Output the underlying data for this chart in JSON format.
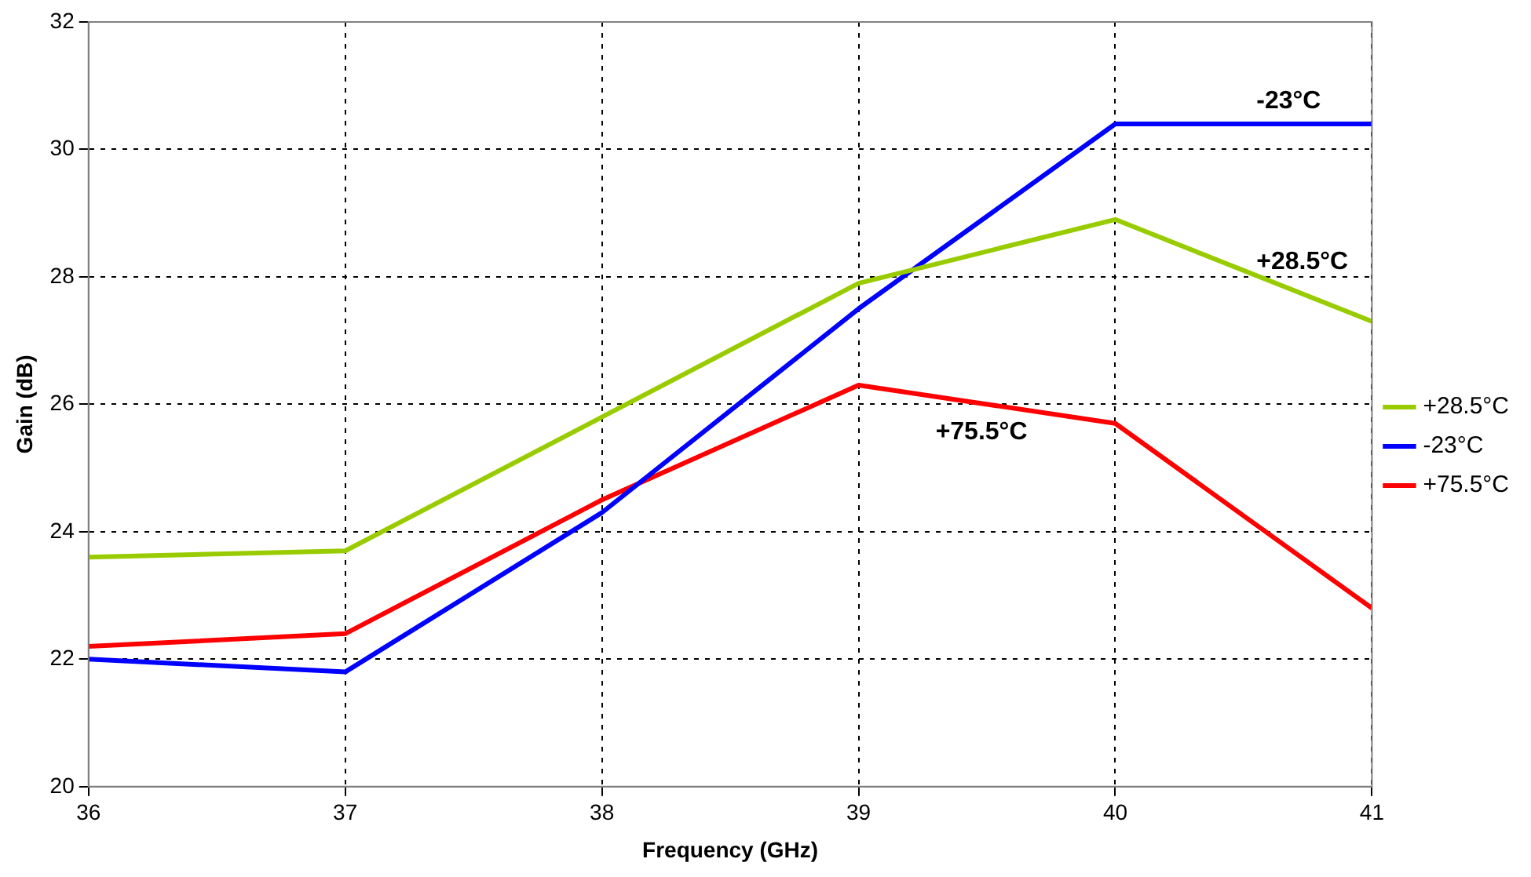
{
  "chart_data": {
    "type": "line",
    "xlabel": "Frequency (GHz)",
    "ylabel": "Gain (dB)",
    "x": [
      36,
      37,
      38,
      39,
      40,
      41
    ],
    "series": [
      {
        "name": "+28.5°C",
        "color": "#99cc00",
        "values": [
          23.6,
          23.7,
          25.8,
          27.9,
          28.9,
          27.3
        ]
      },
      {
        "name": "-23°C",
        "color": "#0000ff",
        "values": [
          22.0,
          21.8,
          24.3,
          27.5,
          30.4,
          30.4
        ]
      },
      {
        "name": "+75.5°C",
        "color": "#ff0000",
        "values": [
          22.2,
          22.4,
          24.5,
          26.3,
          25.7,
          22.8
        ]
      }
    ],
    "xlim": [
      36,
      41
    ],
    "xticks": [
      36,
      37,
      38,
      39,
      40,
      41
    ],
    "ylim": [
      20,
      32
    ],
    "yticks": [
      20,
      22,
      24,
      26,
      28,
      30,
      32
    ],
    "grid": true,
    "legend": "right",
    "marker": "none",
    "line_style": "solid",
    "annotations": [
      "-23°C",
      "+28.5°C",
      "+75.5°C"
    ]
  }
}
